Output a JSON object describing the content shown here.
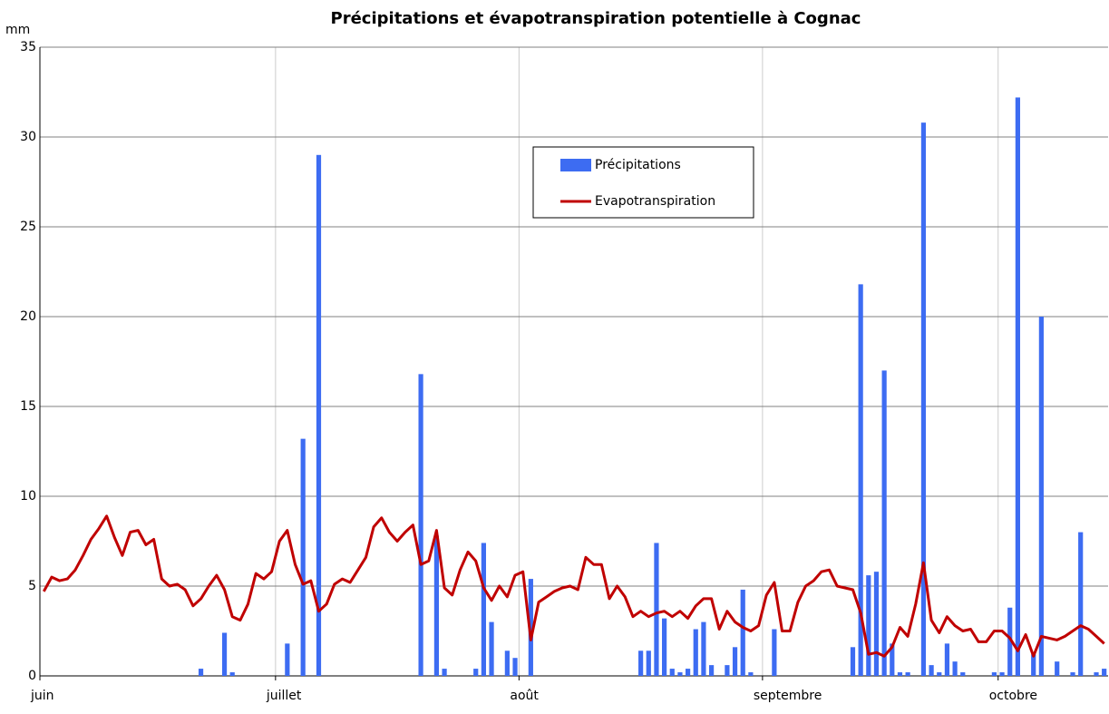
{
  "chart_data": {
    "type": "combo",
    "title": "Précipitations et évapotranspiration potentielle à Cognac",
    "y_label": "mm",
    "xlim": [
      0,
      136
    ],
    "xticks": [
      {
        "value": 0,
        "label": "juin"
      },
      {
        "value": 30,
        "label": "juillet"
      },
      {
        "value": 61,
        "label": "août"
      },
      {
        "value": 92,
        "label": "septembre"
      },
      {
        "value": 122,
        "label": "octobre"
      }
    ],
    "ylim": [
      0,
      35
    ],
    "yticks": [
      0,
      5,
      10,
      15,
      20,
      25,
      30,
      35
    ],
    "grid": true,
    "x": [
      0.5,
      1.5,
      2.5,
      3.5,
      4.5,
      5.5,
      6.5,
      7.5,
      8.5,
      9.5,
      10.5,
      11.5,
      12.5,
      13.5,
      14.5,
      15.5,
      16.5,
      17.5,
      18.5,
      19.5,
      20.5,
      21.5,
      22.5,
      23.5,
      24.5,
      25.5,
      26.5,
      27.5,
      28.5,
      29.5,
      30.5,
      31.5,
      32.5,
      33.5,
      34.5,
      35.5,
      36.5,
      37.5,
      38.5,
      39.5,
      40.5,
      41.5,
      42.5,
      43.5,
      44.5,
      45.5,
      46.5,
      47.5,
      48.5,
      49.5,
      50.5,
      51.5,
      52.5,
      53.5,
      54.5,
      55.5,
      56.5,
      57.5,
      58.5,
      59.5,
      60.5,
      61.5,
      62.5,
      63.5,
      64.5,
      65.5,
      66.5,
      67.5,
      68.5,
      69.5,
      70.5,
      71.5,
      72.5,
      73.5,
      74.5,
      75.5,
      76.5,
      77.5,
      78.5,
      79.5,
      80.5,
      81.5,
      82.5,
      83.5,
      84.5,
      85.5,
      86.5,
      87.5,
      88.5,
      89.5,
      90.5,
      91.5,
      92.5,
      93.5,
      94.5,
      95.5,
      96.5,
      97.5,
      98.5,
      99.5,
      100.5,
      101.5,
      102.5,
      103.5,
      104.5,
      105.5,
      106.5,
      107.5,
      108.5,
      109.5,
      110.5,
      111.5,
      112.5,
      113.5,
      114.5,
      115.5,
      116.5,
      117.5,
      118.5,
      119.5,
      120.5,
      121.5,
      122.5,
      123.5,
      124.5,
      125.5,
      126.5,
      127.5,
      128.5,
      129.5,
      130.5,
      131.5,
      132.5,
      133.5,
      134.5,
      135.5
    ],
    "series": [
      {
        "name": "Précipitations",
        "type": "bar",
        "color": "#3d6cf2",
        "values": [
          0,
          0,
          0,
          0,
          0,
          0,
          0,
          0,
          0,
          0,
          0,
          0,
          0,
          0,
          0,
          0,
          0,
          0,
          0,
          0,
          0.4,
          0,
          0,
          2.4,
          0.2,
          0,
          0,
          0,
          0,
          0,
          0,
          1.8,
          0,
          13.2,
          0,
          29,
          0,
          0,
          0,
          0,
          0,
          0,
          0,
          0,
          0,
          0,
          0,
          0,
          16.8,
          0,
          7.8,
          0.4,
          0,
          0,
          0,
          0.4,
          7.4,
          3.0,
          0,
          1.4,
          1.0,
          0,
          5.4,
          0,
          0,
          0,
          0,
          0,
          0,
          0,
          0,
          0,
          0,
          0,
          0,
          0,
          1.4,
          1.4,
          7.4,
          3.2,
          0.4,
          0.2,
          0.4,
          2.6,
          3.0,
          0.6,
          0,
          0.6,
          1.6,
          4.8,
          0.2,
          0,
          0,
          2.6,
          0,
          0,
          0,
          0,
          0,
          0,
          0,
          0,
          0,
          1.6,
          21.8,
          5.6,
          5.8,
          17,
          1.8,
          0.2,
          0.2,
          0,
          30.8,
          0.6,
          0.2,
          1.8,
          0.8,
          0.2,
          0,
          0,
          0,
          0.2,
          0.2,
          3.8,
          32.2,
          0,
          1.2,
          20,
          0,
          0.8,
          0,
          0.2,
          8,
          0,
          0.2,
          0.4
        ]
      },
      {
        "name": "Evapotranspiration",
        "type": "line",
        "color": "#c00000",
        "values": [
          4.7,
          5.5,
          5.3,
          5.4,
          5.9,
          6.7,
          7.6,
          8.2,
          8.9,
          7.7,
          6.7,
          8.0,
          8.1,
          7.3,
          7.6,
          5.4,
          5.0,
          5.1,
          4.8,
          3.9,
          4.3,
          5.0,
          5.6,
          4.8,
          3.3,
          3.1,
          4.0,
          5.7,
          5.4,
          5.8,
          7.5,
          8.1,
          6.2,
          5.1,
          5.3,
          3.6,
          4.0,
          5.1,
          5.4,
          5.2,
          5.9,
          6.6,
          8.3,
          8.8,
          8.0,
          7.5,
          8.0,
          8.4,
          6.2,
          6.4,
          8.1,
          4.9,
          4.5,
          5.9,
          6.9,
          6.4,
          4.9,
          4.2,
          5.0,
          4.4,
          5.6,
          5.8,
          2.0,
          4.1,
          4.4,
          4.7,
          4.9,
          5.0,
          4.8,
          6.6,
          6.2,
          6.2,
          4.3,
          5.0,
          4.4,
          3.3,
          3.6,
          3.3,
          3.5,
          3.6,
          3.3,
          3.6,
          3.2,
          3.9,
          4.3,
          4.3,
          2.6,
          3.6,
          3.0,
          2.7,
          2.5,
          2.8,
          4.5,
          5.2,
          2.5,
          2.5,
          4.1,
          5.0,
          5.3,
          5.8,
          5.9,
          5.0,
          4.9,
          4.8,
          3.5,
          1.2,
          1.3,
          1.1,
          1.6,
          2.7,
          2.2,
          4.0,
          6.3,
          3.1,
          2.4,
          3.3,
          2.8,
          2.5,
          2.6,
          1.9,
          1.9,
          2.5,
          2.5,
          2.1,
          1.4,
          2.3,
          1.1,
          2.2,
          2.1,
          2.0,
          2.2,
          2.5,
          2.8,
          2.6,
          2.2,
          1.8
        ]
      }
    ]
  }
}
